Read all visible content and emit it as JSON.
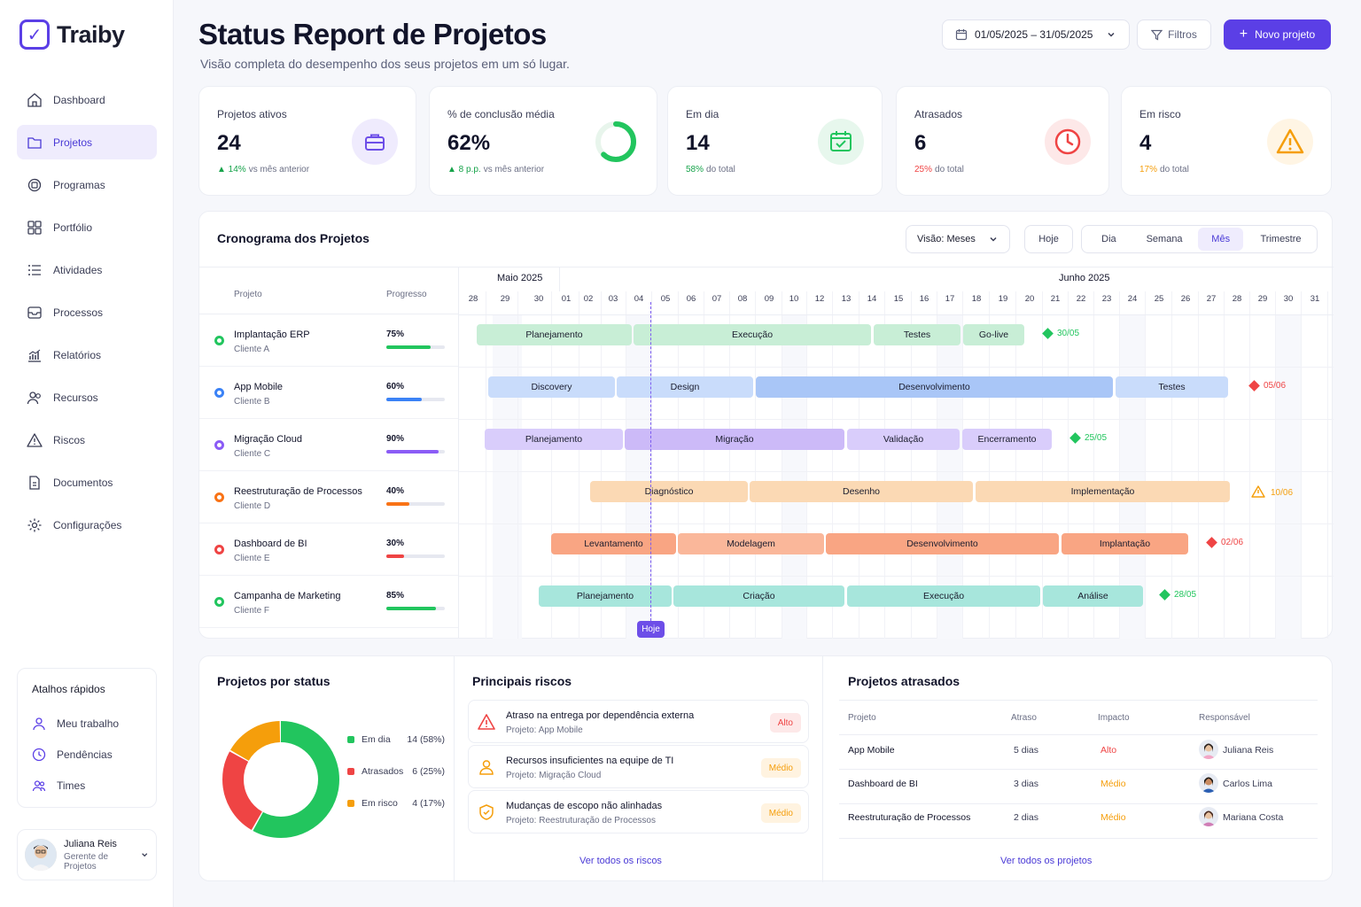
{
  "app": {
    "name": "Traiby"
  },
  "nav": [
    {
      "label": "Dashboard",
      "icon": "home-icon"
    },
    {
      "label": "Projetos",
      "icon": "folder-icon",
      "active": true
    },
    {
      "label": "Programas",
      "icon": "programs-icon"
    },
    {
      "label": "Portfólio",
      "icon": "grid-icon"
    },
    {
      "label": "Atividades",
      "icon": "list-icon"
    },
    {
      "label": "Processos",
      "icon": "inbox-icon"
    },
    {
      "label": "Relatórios",
      "icon": "chart-icon"
    },
    {
      "label": "Recursos",
      "icon": "users-icon"
    },
    {
      "label": "Riscos",
      "icon": "warning-icon"
    },
    {
      "label": "Documentos",
      "icon": "document-icon"
    },
    {
      "label": "Configurações",
      "icon": "gear-icon"
    }
  ],
  "shortcuts": {
    "title": "Atalhos rápidos",
    "items": [
      {
        "label": "Meu trabalho",
        "icon": "user-icon"
      },
      {
        "label": "Pendências",
        "icon": "clock-icon"
      },
      {
        "label": "Times",
        "icon": "team-icon"
      }
    ]
  },
  "user": {
    "name": "Juliana Reis",
    "role": "Gerente de Projetos"
  },
  "header": {
    "title": "Status Report de Projetos",
    "subtitle": "Visão completa do desempenho dos seus projetos em um só lugar.",
    "date_range": "01/05/2025 – 31/05/2025",
    "filter_label": "Filtros",
    "new_label": "Novo projeto"
  },
  "kpis": [
    {
      "label": "Projetos ativos",
      "value": "24",
      "delta": "▲ 14%",
      "sub": "vs mês anterior",
      "color": "#16a34a",
      "icon": "briefcase-icon"
    },
    {
      "label": "% de conclusão média",
      "value": "62%",
      "delta": "▲ 8 p.p.",
      "sub": "vs mês anterior",
      "color": "#16a34a",
      "icon": "progress-ring-icon"
    },
    {
      "label": "Em dia",
      "value": "14",
      "delta": "58%",
      "sub": "do total",
      "color": "#16a34a",
      "icon": "calendar-check-icon"
    },
    {
      "label": "Atrasados",
      "value": "6",
      "delta": "25%",
      "sub": "do total",
      "color": "#ef4444",
      "icon": "clock-icon"
    },
    {
      "label": "Em risco",
      "value": "4",
      "delta": "17%",
      "sub": "do total",
      "color": "#f59e0b",
      "icon": "warning-icon"
    }
  ],
  "gantt": {
    "title": "Cronograma dos Projetos",
    "view_prefix": "Visão:",
    "view_value": "Meses",
    "today_button": "Hoje",
    "scales": [
      "Dia",
      "Semana",
      "Mês",
      "Trimestre"
    ],
    "active_scale": "Mês",
    "col_project": "Projeto",
    "col_progress": "Progresso",
    "months": [
      "Maio 2025",
      "Junho 2025"
    ],
    "days": [
      "28",
      "29",
      "30",
      "01",
      "02",
      "03",
      "04",
      "05",
      "06",
      "07",
      "08",
      "09",
      "10",
      "12",
      "13",
      "14",
      "15",
      "16",
      "17",
      "18",
      "19",
      "20",
      "21",
      "22",
      "23",
      "24",
      "25",
      "26",
      "27",
      "28",
      "29",
      "30",
      "31"
    ],
    "today_label": "Hoje",
    "projects": [
      {
        "name": "Implantação ERP",
        "client": "Cliente A",
        "progress": "75%",
        "progress_value": 75,
        "color": "#22c55e",
        "phases": [
          "Planejamento",
          "Execução",
          "Testes",
          "Go-live"
        ],
        "milestone": "30/05",
        "milestone_status": "ok"
      },
      {
        "name": "App Mobile",
        "client": "Cliente B",
        "progress": "60%",
        "progress_value": 60,
        "color": "#3b82f6",
        "phases": [
          "Discovery",
          "Design",
          "Desenvolvimento",
          "Testes"
        ],
        "milestone": "05/06",
        "milestone_status": "late"
      },
      {
        "name": "Migração Cloud",
        "client": "Cliente C",
        "progress": "90%",
        "progress_value": 90,
        "color": "#8b5cf6",
        "phases": [
          "Planejamento",
          "Migração",
          "Validação",
          "Encerramento"
        ],
        "milestone": "25/05",
        "milestone_status": "ok"
      },
      {
        "name": "Reestruturação de Processos",
        "client": "Cliente D",
        "progress": "40%",
        "progress_value": 40,
        "color": "#f97316",
        "phases": [
          "Diagnóstico",
          "Desenho",
          "Implementação"
        ],
        "milestone": "10/06",
        "milestone_status": "risk"
      },
      {
        "name": "Dashboard de BI",
        "client": "Cliente E",
        "progress": "30%",
        "progress_value": 30,
        "color": "#ef4444",
        "phases": [
          "Levantamento",
          "Modelagem",
          "Desenvolvimento",
          "Implantação"
        ],
        "milestone": "02/06",
        "milestone_status": "late"
      },
      {
        "name": "Campanha de Marketing",
        "client": "Cliente F",
        "progress": "85%",
        "progress_value": 85,
        "color": "#22c55e",
        "phases": [
          "Planejamento",
          "Criação",
          "Execução",
          "Análise"
        ],
        "milestone": "28/05",
        "milestone_status": "ok"
      }
    ]
  },
  "status": {
    "title": "Projetos por status",
    "items": [
      {
        "label": "Em dia",
        "value": "14 (58%)",
        "count": 14,
        "color": "#22c55e"
      },
      {
        "label": "Atrasados",
        "value": "6 (25%)",
        "count": 6,
        "color": "#ef4444"
      },
      {
        "label": "Em risco",
        "value": "4 (17%)",
        "count": 4,
        "color": "#f59e0b"
      }
    ]
  },
  "risks": {
    "title": "Principais riscos",
    "items": [
      {
        "title": "Atraso na entrega por dependência externa",
        "project": "Projeto: App Mobile",
        "level": "Alto"
      },
      {
        "title": "Recursos insuficientes na equipe de TI",
        "project": "Projeto: Migração Cloud",
        "level": "Médio"
      },
      {
        "title": "Mudanças de escopo não alinhadas",
        "project": "Projeto: Reestruturação de Processos",
        "level": "Médio"
      }
    ],
    "link": "Ver todos os riscos"
  },
  "late": {
    "title": "Projetos atrasados",
    "headers": [
      "Projeto",
      "Atraso",
      "Impacto",
      "Responsável"
    ],
    "rows": [
      {
        "project": "App Mobile",
        "delay": "5 dias",
        "impact": "Alto",
        "owner": "Juliana Reis"
      },
      {
        "project": "Dashboard de BI",
        "delay": "3 dias",
        "impact": "Médio",
        "owner": "Carlos Lima"
      },
      {
        "project": "Reestruturação de Processos",
        "delay": "2 dias",
        "impact": "Médio",
        "owner": "Mariana Costa"
      }
    ],
    "link": "Ver todos os projetos"
  }
}
